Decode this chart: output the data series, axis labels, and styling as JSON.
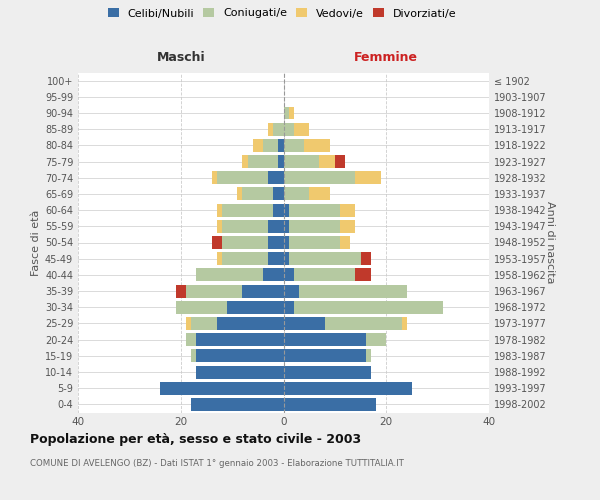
{
  "age_groups": [
    "0-4",
    "5-9",
    "10-14",
    "15-19",
    "20-24",
    "25-29",
    "30-34",
    "35-39",
    "40-44",
    "45-49",
    "50-54",
    "55-59",
    "60-64",
    "65-69",
    "70-74",
    "75-79",
    "80-84",
    "85-89",
    "90-94",
    "95-99",
    "100+"
  ],
  "birth_years": [
    "1998-2002",
    "1993-1997",
    "1988-1992",
    "1983-1987",
    "1978-1982",
    "1973-1977",
    "1968-1972",
    "1963-1967",
    "1958-1962",
    "1953-1957",
    "1948-1952",
    "1943-1947",
    "1938-1942",
    "1933-1937",
    "1928-1932",
    "1923-1927",
    "1918-1922",
    "1913-1917",
    "1908-1912",
    "1903-1907",
    "≤ 1902"
  ],
  "maschi": {
    "celibi": [
      18,
      24,
      17,
      17,
      17,
      13,
      11,
      8,
      4,
      3,
      3,
      3,
      2,
      2,
      3,
      1,
      1,
      0,
      0,
      0,
      0
    ],
    "coniugati": [
      0,
      0,
      0,
      1,
      2,
      5,
      10,
      11,
      13,
      9,
      9,
      9,
      10,
      6,
      10,
      6,
      3,
      2,
      0,
      0,
      0
    ],
    "vedovi": [
      0,
      0,
      0,
      0,
      0,
      1,
      0,
      0,
      0,
      1,
      0,
      1,
      1,
      1,
      1,
      1,
      2,
      1,
      0,
      0,
      0
    ],
    "divorziati": [
      0,
      0,
      0,
      0,
      0,
      0,
      0,
      2,
      0,
      0,
      2,
      0,
      0,
      0,
      0,
      0,
      0,
      0,
      0,
      0,
      0
    ]
  },
  "femmine": {
    "nubili": [
      18,
      25,
      17,
      16,
      16,
      8,
      2,
      3,
      2,
      1,
      1,
      1,
      1,
      0,
      0,
      0,
      0,
      0,
      0,
      0,
      0
    ],
    "coniugate": [
      0,
      0,
      0,
      1,
      4,
      15,
      29,
      21,
      12,
      14,
      10,
      10,
      10,
      5,
      14,
      7,
      4,
      2,
      1,
      0,
      0
    ],
    "vedove": [
      0,
      0,
      0,
      0,
      0,
      1,
      0,
      0,
      0,
      0,
      2,
      3,
      3,
      4,
      5,
      3,
      5,
      3,
      1,
      0,
      0
    ],
    "divorziate": [
      0,
      0,
      0,
      0,
      0,
      0,
      0,
      0,
      3,
      2,
      0,
      0,
      0,
      0,
      0,
      2,
      0,
      0,
      0,
      0,
      0
    ]
  },
  "colors": {
    "celibi": "#3a6ea5",
    "coniugati": "#b5c9a1",
    "vedovi": "#f0c96e",
    "divorziati": "#c0392b"
  },
  "xlim": 40,
  "title": "Popolazione per età, sesso e stato civile - 2003",
  "subtitle": "COMUNE DI AVELENGO (BZ) - Dati ISTAT 1° gennaio 2003 - Elaborazione TUTTITALIA.IT",
  "ylabel_left": "Fasce di età",
  "ylabel_right": "Anni di nascita",
  "xlabel_maschi": "Maschi",
  "xlabel_femmine": "Femmine",
  "bg_color": "#eeeeee",
  "plot_bg": "#ffffff",
  "grid_color": "#cccccc"
}
